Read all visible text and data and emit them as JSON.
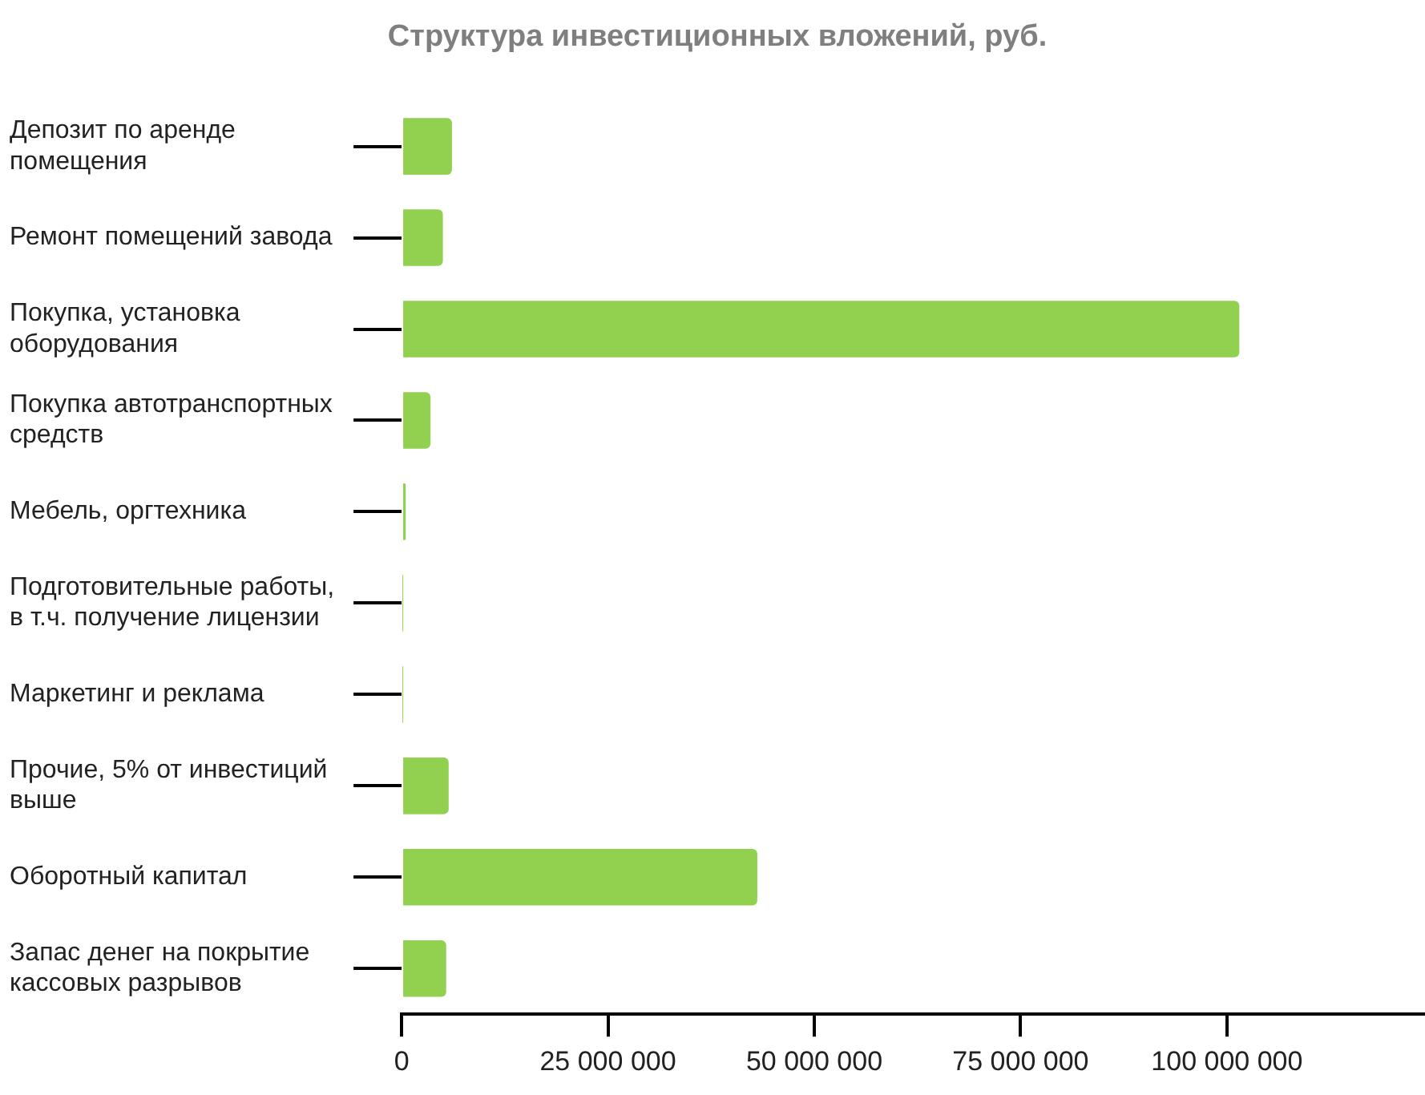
{
  "chart_data": {
    "type": "bar",
    "orientation": "horizontal",
    "title": "Структура инвестиционных вложений, руб.",
    "categories": [
      "Депозит по аренде\nпомещения",
      "Ремонт помещений завода",
      "Покупка, установка\nоборудования",
      "Покупка автотранспортных\nсредств",
      "Мебель, оргтехника",
      "Подготовительные работы,\nв т.ч. получение лицензии",
      "Маркетинг и реклама",
      "Прочие, 5% от инвестиций\nвыше",
      "Оборотный капитал",
      "Запас денег на покрытие\nкассовых разрывов"
    ],
    "values": [
      6100000,
      5000000,
      101500000,
      3500000,
      500000,
      100000,
      100000,
      5700000,
      43100000,
      5400000
    ],
    "color": "#92d050",
    "xlim": [
      0,
      124000000
    ],
    "xticks": [
      0,
      {
        "value": 25000000,
        "label": "25 000 000"
      },
      {
        "value": 50000000,
        "label": "50 000 000"
      },
      {
        "value": 75000000,
        "label": "75 000 000"
      },
      {
        "value": 100000000,
        "label": "100 000 000"
      }
    ],
    "grid": false,
    "legend": false
  }
}
